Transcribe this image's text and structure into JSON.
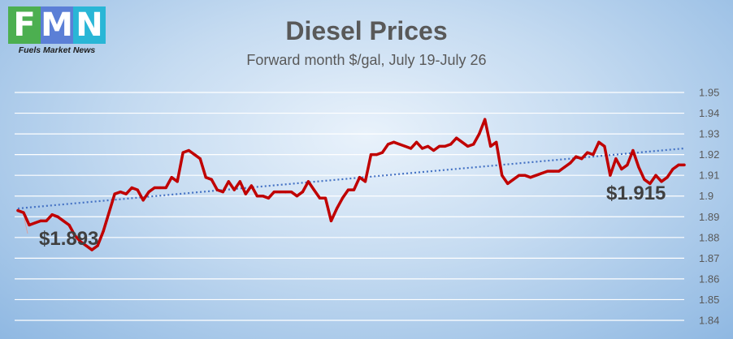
{
  "logo": {
    "letters": [
      {
        "char": "F",
        "color": "#4caf50"
      },
      {
        "char": "M",
        "color": "#5b7fd6"
      },
      {
        "char": "N",
        "color": "#29b6d6"
      }
    ],
    "tagline": "Fuels Market News"
  },
  "chart_data": {
    "type": "line",
    "title": "Diesel Prices",
    "subtitle": "Forward month $/gal, July 19-July 26",
    "xlabel": "",
    "ylabel": "",
    "ylim": [
      1.84,
      1.95
    ],
    "yticks": [
      "1.84",
      "1.85",
      "1.86",
      "1.87",
      "1.88",
      "1.89",
      "1.9",
      "1.91",
      "1.92",
      "1.93",
      "1.94",
      "1.95"
    ],
    "grid": true,
    "series": [
      {
        "color": "#c00000",
        "values": [
          1.893,
          1.892,
          1.886,
          1.887,
          1.888,
          1.888,
          1.891,
          1.89,
          1.888,
          1.886,
          1.881,
          1.878,
          1.876,
          1.874,
          1.876,
          1.883,
          1.892,
          1.901,
          1.902,
          1.901,
          1.904,
          1.903,
          1.898,
          1.902,
          1.904,
          1.904,
          1.904,
          1.909,
          1.907,
          1.921,
          1.922,
          1.92,
          1.918,
          1.909,
          1.908,
          1.903,
          1.902,
          1.907,
          1.903,
          1.907,
          1.901,
          1.905,
          1.9,
          1.9,
          1.899,
          1.902,
          1.902,
          1.902,
          1.902,
          1.9,
          1.902,
          1.907,
          1.903,
          1.899,
          1.899,
          1.888,
          1.894,
          1.899,
          1.903,
          1.903,
          1.909,
          1.907,
          1.92,
          1.92,
          1.921,
          1.925,
          1.926,
          1.925,
          1.924,
          1.923,
          1.926,
          1.923,
          1.924,
          1.922,
          1.924,
          1.924,
          1.925,
          1.928,
          1.926,
          1.924,
          1.925,
          1.93,
          1.937,
          1.924,
          1.926,
          1.91,
          1.906,
          1.908,
          1.91,
          1.91,
          1.909,
          1.91,
          1.911,
          1.912,
          1.912,
          1.912,
          1.914,
          1.916,
          1.919,
          1.918,
          1.921,
          1.92,
          1.926,
          1.924,
          1.91,
          1.918,
          1.913,
          1.915,
          1.922,
          1.914,
          1.908,
          1.906,
          1.91,
          1.907,
          1.909,
          1.913,
          1.915,
          1.915
        ]
      }
    ],
    "trendline": {
      "color": "#4472c4",
      "start": 1.894,
      "end": 1.923
    },
    "annotations": [
      {
        "text": "$1.893",
        "value": 1.893,
        "at": "start"
      },
      {
        "text": "$1.915",
        "value": 1.915,
        "at": "end"
      }
    ]
  }
}
